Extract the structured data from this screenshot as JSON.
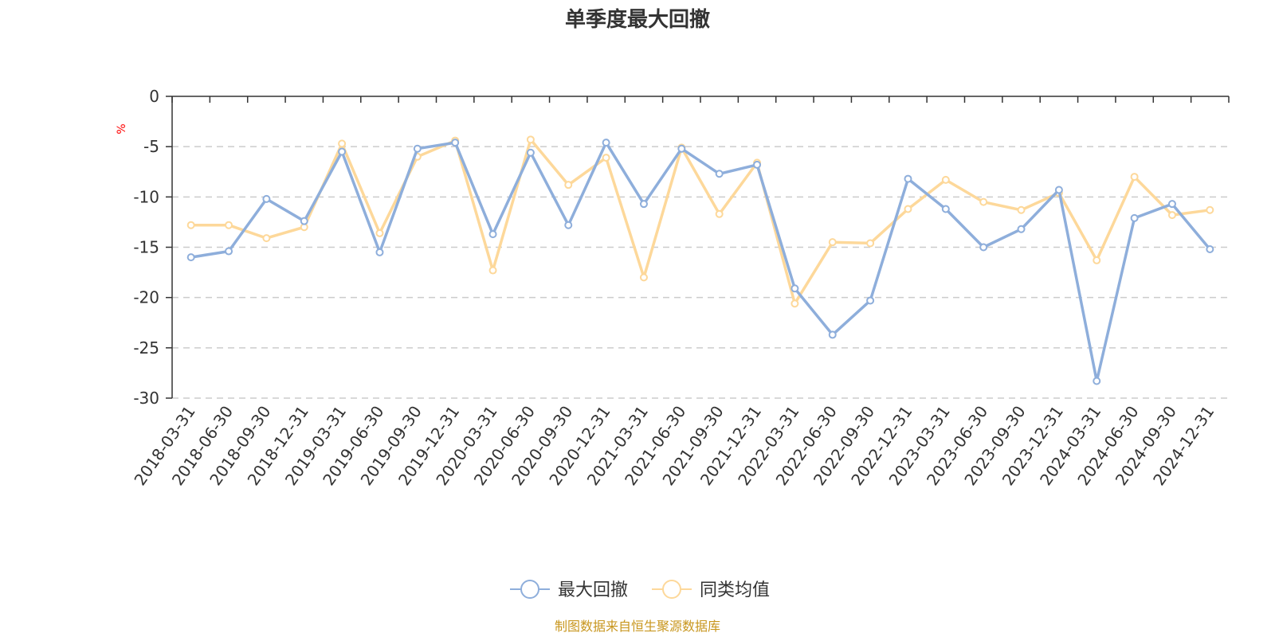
{
  "chart_data": {
    "type": "line",
    "title": "单季度最大回撤",
    "ylabel": "%",
    "xlabel": "",
    "ylim": [
      -30,
      0
    ],
    "yticks": [
      0,
      -5,
      -10,
      -15,
      -20,
      -25,
      -30
    ],
    "grid": true,
    "legend_position": "bottom-center",
    "categories": [
      "2018-03-31",
      "2018-06-30",
      "2018-09-30",
      "2018-12-31",
      "2019-03-31",
      "2019-06-30",
      "2019-09-30",
      "2019-12-31",
      "2020-03-31",
      "2020-06-30",
      "2020-09-30",
      "2020-12-31",
      "2021-03-31",
      "2021-06-30",
      "2021-09-30",
      "2021-12-31",
      "2022-03-31",
      "2022-06-30",
      "2022-09-30",
      "2022-12-31",
      "2023-03-31",
      "2023-06-30",
      "2023-09-30",
      "2023-12-31",
      "2024-03-31",
      "2024-06-30",
      "2024-09-30",
      "2024-12-31"
    ],
    "series": [
      {
        "name": "最大回撤",
        "color": "#8eaedb",
        "values": [
          -16.0,
          -15.4,
          -10.2,
          -12.4,
          -5.5,
          -15.5,
          -5.2,
          -4.6,
          -13.7,
          -5.6,
          -12.8,
          -4.6,
          -10.7,
          -5.2,
          -7.7,
          -6.8,
          -19.1,
          -23.7,
          -20.3,
          -8.2,
          -11.2,
          -15.0,
          -13.2,
          -9.3,
          -28.3,
          -12.1,
          -10.7,
          -15.2
        ]
      },
      {
        "name": "同类均值",
        "color": "#fdd89a",
        "values": [
          -12.8,
          -12.8,
          -14.1,
          -13.0,
          -4.7,
          -13.6,
          -6.0,
          -4.4,
          -17.3,
          -4.3,
          -8.8,
          -6.1,
          -18.0,
          -5.1,
          -11.7,
          -6.6,
          -20.6,
          -14.5,
          -14.6,
          -11.2,
          -8.3,
          -10.5,
          -11.3,
          -9.6,
          -16.3,
          -8.0,
          -11.8,
          -11.3
        ]
      }
    ]
  },
  "source": "制图数据来自恒生聚源数据库"
}
